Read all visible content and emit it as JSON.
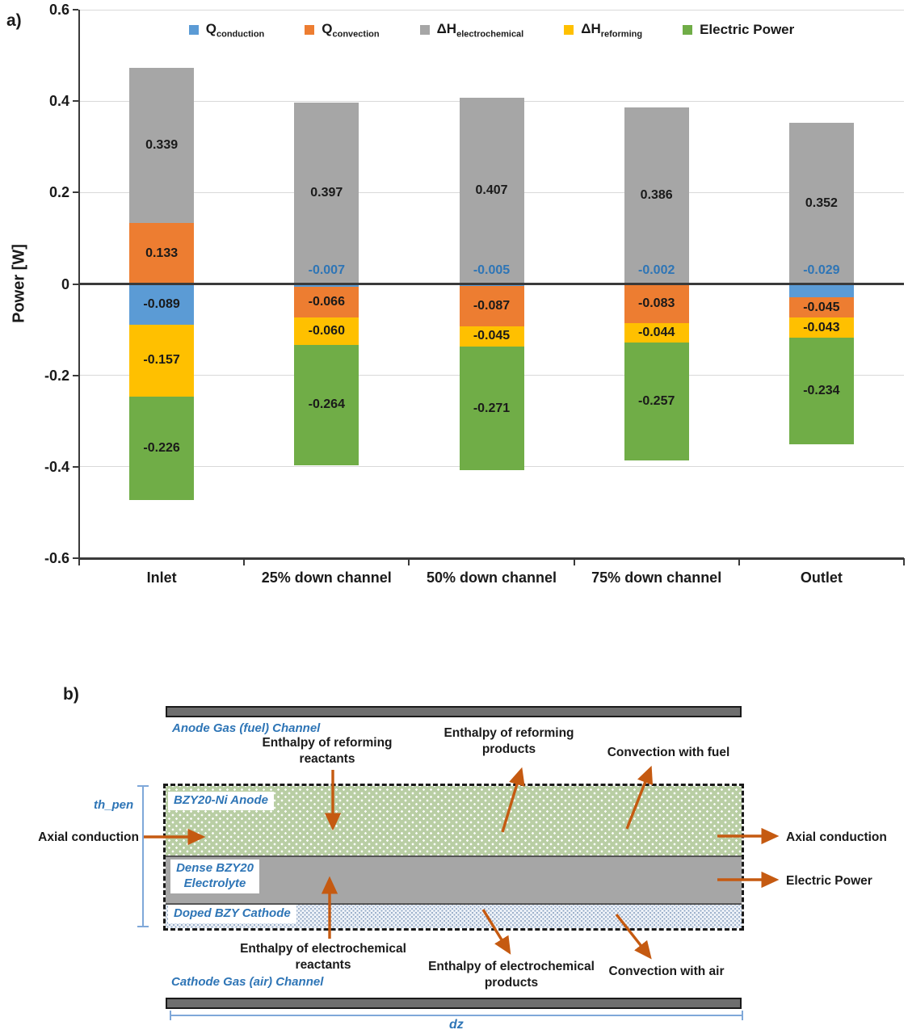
{
  "figure": {
    "panel_a_label": "a)",
    "panel_b_label": "b)"
  },
  "chart_data": {
    "type": "bar",
    "stacked": true,
    "ylabel": "Power [W]",
    "ylim": [
      -0.6,
      0.6
    ],
    "grid": true,
    "legend_position": "top-center",
    "yticks": [
      0.6,
      0.4,
      0.2,
      0,
      -0.2,
      -0.4,
      -0.6
    ],
    "ytick_labels": [
      "0.6",
      "0.4",
      "0.2",
      "0",
      "-0.2",
      "-0.4",
      "-0.6"
    ],
    "categories": [
      "Inlet",
      "25% down channel",
      "50% down channel",
      "75% down channel",
      "Outlet"
    ],
    "series": [
      {
        "name": "Q_conduction",
        "legend_main": "Q",
        "legend_sub": "conduction",
        "color": "#5b9bd5",
        "values": [
          -0.089,
          -0.007,
          -0.005,
          -0.002,
          -0.029
        ],
        "labels": [
          "-0.089",
          "-0.007",
          "-0.005",
          "-0.002",
          "-0.029"
        ]
      },
      {
        "name": "Q_convection",
        "legend_main": "Q",
        "legend_sub": "convection",
        "color": "#ed7d31",
        "values": [
          0.133,
          -0.066,
          -0.087,
          -0.083,
          -0.045
        ],
        "labels": [
          "0.133",
          "-0.066",
          "-0.087",
          "-0.083",
          "-0.045"
        ]
      },
      {
        "name": "dH_electrochemical",
        "legend_main": "ΔH",
        "legend_sub": "electrochemical",
        "color": "#a6a6a6",
        "values": [
          0.339,
          0.397,
          0.407,
          0.386,
          0.352
        ],
        "labels": [
          "0.339",
          "0.397",
          "0.407",
          "0.386",
          "0.352"
        ]
      },
      {
        "name": "dH_reforming",
        "legend_main": "ΔH",
        "legend_sub": "reforming",
        "color": "#ffc000",
        "values": [
          -0.157,
          -0.06,
          -0.045,
          -0.044,
          -0.043
        ],
        "labels": [
          "-0.157",
          "-0.060",
          "-0.045",
          "-0.044",
          "-0.043"
        ]
      },
      {
        "name": "Electric Power",
        "legend_main": "Electric Power",
        "legend_sub": "",
        "color": "#70ad47",
        "values": [
          -0.226,
          -0.264,
          -0.271,
          -0.257,
          -0.234
        ],
        "labels": [
          "-0.226",
          "-0.264",
          "-0.271",
          "-0.257",
          "-0.234"
        ]
      }
    ],
    "value_label_color": "#1a1a1a",
    "tiny_segment_label_color": "#2e75b6"
  },
  "diagram": {
    "anode_channel": "Anode Gas (fuel) Channel",
    "cathode_channel": "Cathode Gas (air) Channel",
    "anode_layer": "BZY20-Ni Anode",
    "electrolyte_layer": "Dense BZY20 Electrolyte",
    "cathode_layer": "Doped BZY Cathode",
    "th_pen": "th_pen",
    "dz": "dz",
    "axial_conduction_left": "Axial conduction",
    "axial_conduction_right": "Axial conduction",
    "electric_power": "Electric Power",
    "enthalpy_reforming_reactants": "Enthalpy of reforming reactants",
    "enthalpy_reforming_products": "Enthalpy of reforming products",
    "convection_fuel": "Convection with fuel",
    "enthalpy_electrochem_reactants": "Enthalpy of electrochemical reactants",
    "enthalpy_electrochem_products": "Enthalpy of electrochemical products",
    "convection_air": "Convection with air"
  }
}
